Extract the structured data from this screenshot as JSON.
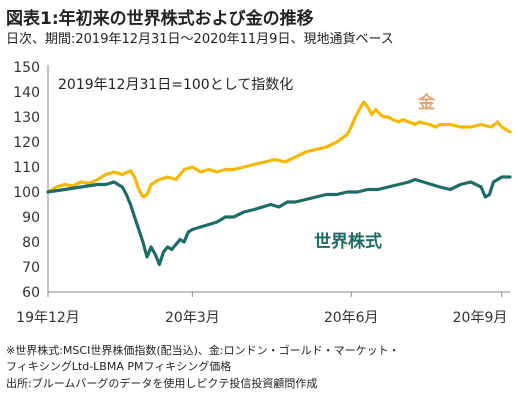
{
  "header": {
    "title": "図表1:年初来の世界株式および金の推移",
    "subtitle": "日次、期間:2019年12月31日〜2020年11月9日、現地通貨ベース"
  },
  "footnotes": [
    "※世界株式:MSCI世界株価指数(配当込)、金:ロンドン・ゴールド・マーケット・",
    "フィキシングLtd-LBMA PMフィキシング価格",
    "出所:ブルームバーグのデータを使用しピクテ投信投資顧問作成"
  ],
  "chart_data": {
    "type": "line",
    "annotation": "2019年12月31日=100として指数化",
    "x_tick_labels": [
      "19年12月",
      "20年3月",
      "20年6月",
      "20年9月"
    ],
    "y_ticks": [
      60,
      70,
      80,
      90,
      100,
      110,
      120,
      130,
      140,
      150
    ],
    "ylim": [
      60,
      150
    ],
    "grid": false,
    "series": [
      {
        "name": "金",
        "color": "#f5b800",
        "label_color": "#e8a36a",
        "points": [
          [
            0,
            100
          ],
          [
            4,
            102
          ],
          [
            8,
            103
          ],
          [
            12,
            102.5
          ],
          [
            16,
            104
          ],
          [
            20,
            103.5
          ],
          [
            24,
            105
          ],
          [
            28,
            107
          ],
          [
            32,
            108
          ],
          [
            36,
            107
          ],
          [
            40,
            108.5
          ],
          [
            42,
            106
          ],
          [
            44,
            101
          ],
          [
            46,
            98
          ],
          [
            48,
            99
          ],
          [
            50,
            103
          ],
          [
            54,
            105
          ],
          [
            58,
            106
          ],
          [
            62,
            105
          ],
          [
            66,
            109
          ],
          [
            70,
            110
          ],
          [
            74,
            108
          ],
          [
            78,
            109
          ],
          [
            82,
            108
          ],
          [
            86,
            109
          ],
          [
            90,
            109
          ],
          [
            95,
            110
          ],
          [
            100,
            111
          ],
          [
            105,
            112
          ],
          [
            110,
            113
          ],
          [
            115,
            112
          ],
          [
            120,
            114
          ],
          [
            125,
            116
          ],
          [
            130,
            117
          ],
          [
            135,
            118
          ],
          [
            140,
            120
          ],
          [
            145,
            123
          ],
          [
            147,
            126
          ],
          [
            149,
            130
          ],
          [
            151,
            133
          ],
          [
            153,
            136
          ],
          [
            155,
            134
          ],
          [
            157,
            131
          ],
          [
            159,
            133
          ],
          [
            161,
            131
          ],
          [
            163,
            130
          ],
          [
            165,
            130
          ],
          [
            167,
            129
          ],
          [
            170,
            128
          ],
          [
            172,
            129
          ],
          [
            175,
            128
          ],
          [
            178,
            127
          ],
          [
            180,
            128
          ],
          [
            185,
            127
          ],
          [
            188,
            126
          ],
          [
            190,
            127
          ],
          [
            195,
            127
          ],
          [
            200,
            126
          ],
          [
            205,
            126
          ],
          [
            210,
            127
          ],
          [
            215,
            126
          ],
          [
            218,
            128
          ],
          [
            220,
            126
          ],
          [
            222,
            125
          ],
          [
            224,
            124
          ]
        ]
      },
      {
        "name": "世界株式",
        "color": "#1f6b66",
        "label_color": "#1f6b66",
        "points": [
          [
            0,
            100
          ],
          [
            8,
            101
          ],
          [
            16,
            102
          ],
          [
            24,
            103
          ],
          [
            28,
            103
          ],
          [
            32,
            104
          ],
          [
            34,
            103
          ],
          [
            36,
            102
          ],
          [
            38,
            99
          ],
          [
            40,
            95
          ],
          [
            42,
            90
          ],
          [
            44,
            85
          ],
          [
            46,
            80
          ],
          [
            48,
            74
          ],
          [
            50,
            78
          ],
          [
            52,
            75
          ],
          [
            54,
            71
          ],
          [
            56,
            76
          ],
          [
            58,
            78
          ],
          [
            60,
            77
          ],
          [
            64,
            81
          ],
          [
            66,
            80
          ],
          [
            68,
            84
          ],
          [
            70,
            85
          ],
          [
            74,
            86
          ],
          [
            78,
            87
          ],
          [
            82,
            88
          ],
          [
            86,
            90
          ],
          [
            90,
            90
          ],
          [
            95,
            92
          ],
          [
            100,
            93
          ],
          [
            104,
            94
          ],
          [
            108,
            95
          ],
          [
            112,
            94
          ],
          [
            116,
            96
          ],
          [
            120,
            96
          ],
          [
            125,
            97
          ],
          [
            130,
            98
          ],
          [
            135,
            99
          ],
          [
            140,
            99
          ],
          [
            145,
            100
          ],
          [
            150,
            100
          ],
          [
            155,
            101
          ],
          [
            160,
            101
          ],
          [
            165,
            102
          ],
          [
            170,
            103
          ],
          [
            175,
            104
          ],
          [
            178,
            105
          ],
          [
            182,
            104
          ],
          [
            186,
            103
          ],
          [
            190,
            102
          ],
          [
            195,
            101
          ],
          [
            200,
            103
          ],
          [
            205,
            104
          ],
          [
            210,
            102
          ],
          [
            212,
            98
          ],
          [
            214,
            99
          ],
          [
            216,
            104
          ],
          [
            218,
            105
          ],
          [
            220,
            106
          ],
          [
            222,
            106
          ],
          [
            224,
            106
          ]
        ]
      }
    ]
  }
}
